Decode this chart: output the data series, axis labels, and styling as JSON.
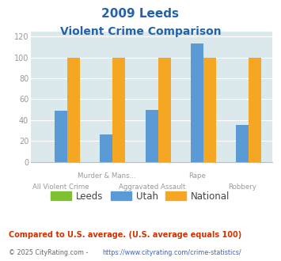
{
  "title_line1": "2009 Leeds",
  "title_line2": "Violent Crime Comparison",
  "categories": [
    "All Violent Crime",
    "Murder & Mans...",
    "Aggravated Assault",
    "Rape",
    "Robbery"
  ],
  "leeds_values": [
    0,
    0,
    0,
    0,
    0
  ],
  "utah_values": [
    49,
    26,
    50,
    113,
    35
  ],
  "national_values": [
    100,
    100,
    100,
    100,
    100
  ],
  "leeds_color": "#7dc132",
  "utah_color": "#5b9bd5",
  "national_color": "#f5a623",
  "bg_color": "#dce9ec",
  "title_color": "#2563a8",
  "tick_color": "#999999",
  "label_color": "#999999",
  "ylim": [
    0,
    125
  ],
  "yticks": [
    0,
    20,
    40,
    60,
    80,
    100,
    120
  ],
  "footnote1": "Compared to U.S. average. (U.S. average equals 100)",
  "footnote2": "© 2025 CityRating.com - https://www.cityrating.com/crime-statistics/",
  "footnote1_color": "#cc3300",
  "footnote2_color": "#666666",
  "footnote2_link_color": "#3366cc"
}
